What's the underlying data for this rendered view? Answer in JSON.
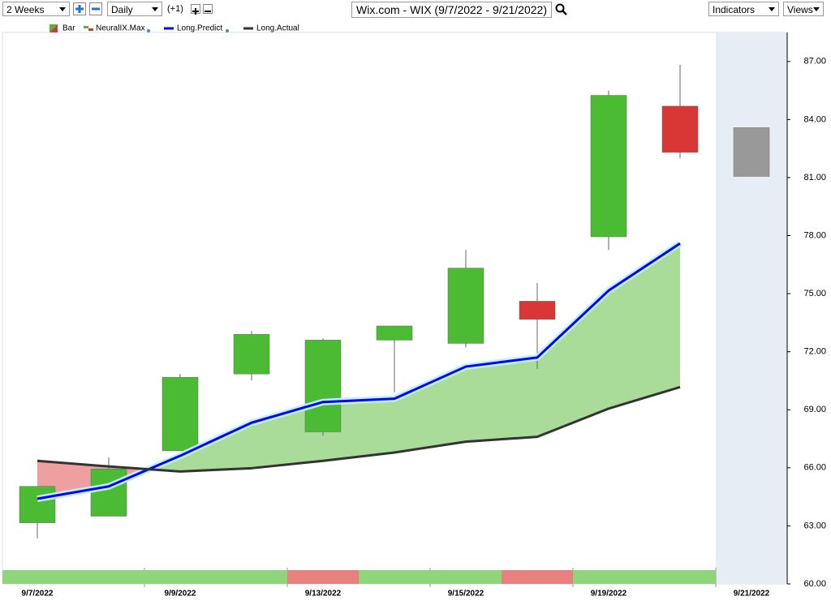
{
  "toolbar": {
    "range": "2 Weeks",
    "interval": "Daily",
    "offset": "(+1)",
    "symbol_title": "Wix.com - WIX (9/7/2022 - 9/21/2022)",
    "indicators": "Indicators",
    "views": "Views"
  },
  "chart_data": {
    "type": "candlestick",
    "categories": [
      "9/7/2022",
      null,
      "9/9/2022",
      null,
      "9/13/2022",
      null,
      "9/15/2022",
      null,
      "9/19/2022",
      null,
      "9/21/2022"
    ],
    "candles": {
      "name": "Bar",
      "up_color": "#4cbb34",
      "down_color": "#d93636",
      "open": [
        63.16,
        63.5,
        66.88,
        70.85,
        67.86,
        72.6,
        72.43,
        74.61,
        77.94,
        84.69,
        null
      ],
      "high": [
        65.04,
        66.54,
        70.85,
        73.07,
        72.69,
        73.33,
        77.26,
        75.55,
        85.5,
        86.83,
        null
      ],
      "low": [
        62.35,
        63.5,
        66.88,
        70.51,
        67.65,
        69.91,
        72.22,
        71.11,
        77.26,
        82.0,
        null
      ],
      "close": [
        65.04,
        65.94,
        70.68,
        72.9,
        72.6,
        73.33,
        76.32,
        73.67,
        85.25,
        82.3,
        null
      ]
    },
    "projection": {
      "high": 83.58,
      "low": 81.06,
      "color": "#999999"
    },
    "neuralix": {
      "name": "NeuralIX.Max",
      "colors": [
        "#8fd67a",
        "#8fd67a",
        "#8fd67a",
        "#8fd67a",
        "#e88080",
        "#8fd67a",
        "#8fd67a",
        "#e88080",
        "#8fd67a",
        "#8fd67a",
        null
      ]
    },
    "series": [
      {
        "name": "Long.Predict",
        "color": "#0000ff",
        "values": [
          64.4,
          65.04,
          66.62,
          68.33,
          69.4,
          69.57,
          71.23,
          71.7,
          75.16,
          77.6,
          null
        ]
      },
      {
        "name": "Long.Actual",
        "color": "#333333",
        "values": [
          66.36,
          66.07,
          65.81,
          65.98,
          66.36,
          66.79,
          67.35,
          67.6,
          69.06,
          70.17,
          null
        ]
      }
    ],
    "fill_up": "#a8dc98",
    "fill_down": "#eea0a0",
    "ylim": [
      60,
      88.5
    ],
    "yticks": [
      {
        "value": 60,
        "label": "60.00"
      },
      {
        "value": 63,
        "label": "63.00"
      },
      {
        "value": 66,
        "label": "66.00"
      },
      {
        "value": 69,
        "label": "69.00"
      },
      {
        "value": 72,
        "label": "72.00"
      },
      {
        "value": 75,
        "label": "75.00"
      },
      {
        "value": 78,
        "label": "78.00"
      },
      {
        "value": 81,
        "label": "81.00"
      },
      {
        "value": 84,
        "label": "84.00"
      },
      {
        "value": 87,
        "label": "87.00"
      }
    ],
    "future_shade": "#e6edf5"
  }
}
